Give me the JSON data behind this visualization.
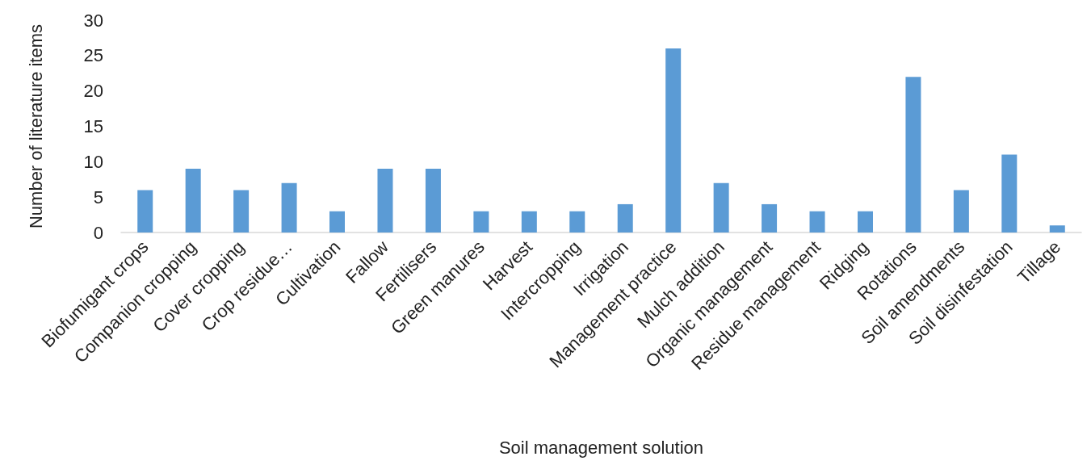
{
  "chart_data": {
    "type": "bar",
    "xlabel": "Soil management solution",
    "ylabel": "Number of literature items",
    "categories": [
      "Biofumigant crops",
      "Companion cropping",
      "Cover cropping",
      "Crop residue…",
      "Cultivation",
      "Fallow",
      "Fertilisers",
      "Green manures",
      "Harvest",
      "Intercropping",
      "Irrigation",
      "Management practice",
      "Mulch addition",
      "Organic management",
      "Residue management",
      "Ridging",
      "Rotations",
      "Soil amendments",
      "Soil disinfestation",
      "Tillage"
    ],
    "values": [
      6,
      9,
      6,
      7,
      3,
      9,
      9,
      3,
      3,
      3,
      4,
      26,
      7,
      4,
      3,
      3,
      22,
      6,
      11,
      1
    ],
    "color": "#5b9bd5",
    "ylim": [
      0,
      30
    ],
    "yticks": [
      0,
      5,
      10,
      15,
      20,
      25,
      30
    ],
    "grid": false
  }
}
